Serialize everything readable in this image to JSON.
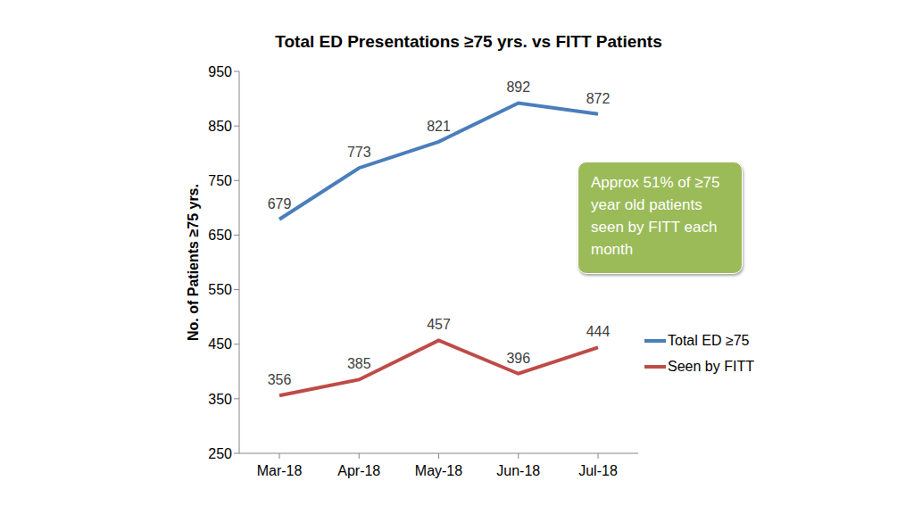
{
  "chart_data": {
    "type": "line",
    "title": "Total ED Presentations ≥75 yrs. vs FITT Patients",
    "y_label": "No. of Patients ≥75 yrs.",
    "categories": [
      "Mar-18",
      "Apr-18",
      "May-18",
      "Jun-18",
      "Jul-18"
    ],
    "series": [
      {
        "name": "Total ED ≥75",
        "color": "#4a7ebb",
        "values": [
          679,
          773,
          821,
          892,
          872
        ]
      },
      {
        "name": "Seen by FITT",
        "color": "#be4b48",
        "values": [
          356,
          385,
          457,
          396,
          444
        ]
      }
    ],
    "ylim": [
      250,
      950
    ],
    "yticks": [
      250,
      350,
      450,
      550,
      650,
      750,
      850,
      950
    ],
    "grid": false,
    "legend": "right",
    "data_labels": true,
    "annotation": "Approx 51% of ≥75 year old patients seen by FITT each month"
  }
}
